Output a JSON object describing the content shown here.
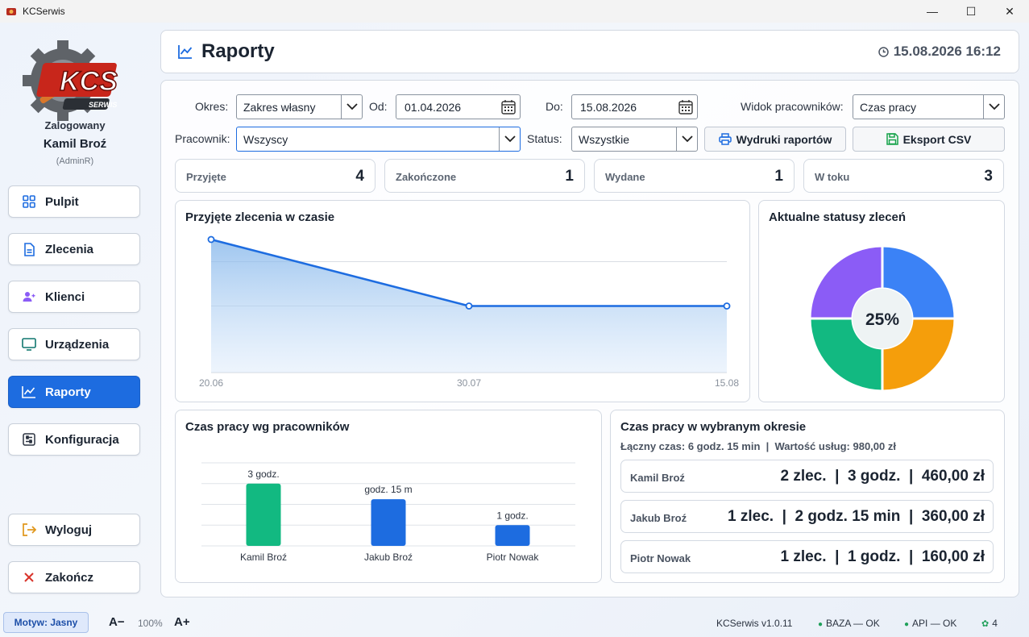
{
  "window": {
    "title": "KCSerwis",
    "minimize": "—",
    "maximize": "☐",
    "close": "✕"
  },
  "sidebar": {
    "logo_text": "KCS",
    "logo_sub": "SERWIS",
    "logged_label": "Zalogowany",
    "user_name": "Kamil Broź",
    "user_role": "(AdminR)",
    "items": [
      {
        "label": "Pulpit",
        "icon": "dashboard-grid-icon"
      },
      {
        "label": "Zlecenia",
        "icon": "document-icon"
      },
      {
        "label": "Klienci",
        "icon": "add-user-icon"
      },
      {
        "label": "Urządzenia",
        "icon": "monitor-icon"
      },
      {
        "label": "Raporty",
        "icon": "chart-line-icon",
        "active": true
      },
      {
        "label": "Konfiguracja",
        "icon": "settings-sliders-icon"
      }
    ],
    "logout": "Wyloguj",
    "exit": "Zakończ"
  },
  "header": {
    "title": "Raporty",
    "datetime": "15.08.2026 16:12"
  },
  "filters": {
    "period_label": "Okres:",
    "period_value": "Zakres własny",
    "from_label": "Od:",
    "from_value": "01.04.2026",
    "to_label": "Do:",
    "to_value": "15.08.2026",
    "view_label": "Widok pracowników:",
    "view_value": "Czas pracy",
    "employee_label": "Pracownik:",
    "employee_value": "Wszyscy",
    "status_label": "Status:",
    "status_value": "Wszystkie",
    "print_button": "Wydruki raportów",
    "export_button": "Eksport CSV"
  },
  "stats": [
    {
      "label": "Przyjęte",
      "value": "4"
    },
    {
      "label": "Zakończone",
      "value": "1"
    },
    {
      "label": "Wydane",
      "value": "1"
    },
    {
      "label": "W toku",
      "value": "3"
    }
  ],
  "line_card": {
    "title": "Przyjęte zlecenia w czasie"
  },
  "donut_card": {
    "title": "Aktualne statusy zleceń",
    "center_label": "25%"
  },
  "bar_card": {
    "title": "Czas pracy wg pracowników"
  },
  "period_card": {
    "title": "Czas pracy w wybranym okresie",
    "summary": "Łączny czas: 6 godz. 15 min  |  Wartość usług: 980,00 zł",
    "rows": [
      {
        "name": "Kamil Broź",
        "value": "2 zlec.  |  3 godz.  |  460,00 zł"
      },
      {
        "name": "Jakub Broź",
        "value": "1 zlec.  |  2 godz. 15 min  |  360,00 zł"
      },
      {
        "name": "Piotr Nowak",
        "value": "1 zlec.  |  1 godz.  |  160,00 zł"
      }
    ]
  },
  "statusbar": {
    "theme": "Motyw: Jasny",
    "font_minus": "A−",
    "zoom": "100%",
    "font_plus": "A+",
    "version": "KCSerwis v1.0.11",
    "db_status": "BAZA — OK",
    "api_status": "API — OK",
    "count": "4"
  },
  "colors": {
    "accent": "#1d6ce0",
    "green": "#12b981",
    "orange": "#f59e0b",
    "purple": "#8b5cf6",
    "blue": "#3b82f6"
  },
  "chart_data": [
    {
      "type": "area",
      "title": "Przyjęte zlecenia w czasie",
      "categories": [
        "20.06",
        "30.07",
        "15.08"
      ],
      "values": [
        3,
        1.5,
        1.5
      ],
      "ylim": [
        0,
        3
      ]
    },
    {
      "type": "pie",
      "title": "Aktualne statusy zleceń",
      "slices": [
        {
          "value": 25,
          "color": "#3b82f6"
        },
        {
          "value": 25,
          "color": "#f59e0b"
        },
        {
          "value": 25,
          "color": "#12b981"
        },
        {
          "value": 25,
          "color": "#8b5cf6"
        }
      ],
      "center_label": "25%"
    },
    {
      "type": "bar",
      "title": "Czas pracy wg pracowników",
      "categories": [
        "Kamil Broź",
        "Jakub Broź",
        "Piotr Nowak"
      ],
      "values": [
        3,
        2.25,
        1
      ],
      "value_labels": [
        "3 godz.",
        "godz. 15 m",
        "1 godz."
      ],
      "colors": [
        "#12b981",
        "#1d6ce0",
        "#1d6ce0"
      ],
      "ylim": [
        0,
        4
      ]
    }
  ]
}
